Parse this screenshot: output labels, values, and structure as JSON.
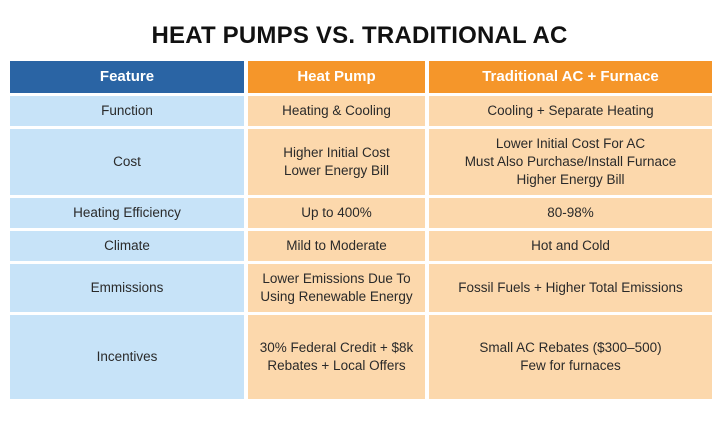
{
  "title": "HEAT PUMPS VS. TRADITIONAL AC",
  "columns": [
    "Feature",
    "Heat Pump",
    "Traditional AC + Furnace"
  ],
  "rows": [
    {
      "feature": "Function",
      "heat_pump": "Heating & Cooling",
      "traditional": "Cooling + Separate Heating"
    },
    {
      "feature": "Cost",
      "heat_pump": "Higher Initial Cost\nLower Energy Bill",
      "traditional": "Lower Initial Cost For AC\nMust Also Purchase/Install Furnace\nHigher Energy Bill"
    },
    {
      "feature": "Heating Efficiency",
      "heat_pump": "Up to 400%",
      "traditional": "80-98%"
    },
    {
      "feature": "Climate",
      "heat_pump": "Mild to Moderate",
      "traditional": "Hot and Cold"
    },
    {
      "feature": "Emmissions",
      "heat_pump": "Lower Emissions Due To\nUsing Renewable Energy",
      "traditional": "Fossil Fuels + Higher Total Emissions"
    },
    {
      "feature": "Incentives",
      "heat_pump": "30% Federal Credit + $8k\nRebates + Local Offers",
      "traditional": "Small AC Rebates ($300–500)\nFew for furnaces"
    }
  ],
  "colors": {
    "header_feature": "#2a64a4",
    "header_other": "#f5962a",
    "feature_cell": "#c7e3f8",
    "value_cell": "#fcd8ac"
  }
}
